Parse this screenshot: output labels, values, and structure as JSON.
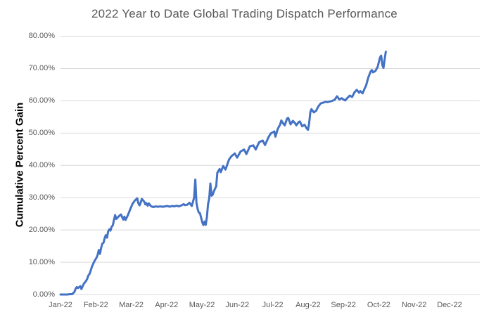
{
  "chart_data": {
    "type": "line",
    "title": "2022 Year to Date Global Trading Dispatch Performance",
    "xlabel": "",
    "ylabel": "Cumulative Percent Gain",
    "x_tick_labels": [
      "Jan-22",
      "Feb-22",
      "Mar-22",
      "Apr-22",
      "May-22",
      "Jun-22",
      "Jul-22",
      "Aug-22",
      "Sep-22",
      "Oct-22",
      "Nov-22",
      "Dec-22"
    ],
    "y_tick_labels": [
      "0.00%",
      "10.00%",
      "20.00%",
      "30.00%",
      "40.00%",
      "50.00%",
      "60.00%",
      "70.00%",
      "80.00%"
    ],
    "ylim": [
      0,
      80
    ],
    "grid": true,
    "legend": false,
    "line_color": "#4472C4",
    "grid_color": "#D9D9D9",
    "title_color": "#595959",
    "tick_color": "#595959",
    "series": [
      {
        "name": "Cumulative Percent Gain",
        "points": [
          [
            "01-01",
            0.0
          ],
          [
            "01-03",
            0.0
          ],
          [
            "01-05",
            0.0
          ],
          [
            "01-07",
            0.0
          ],
          [
            "01-09",
            0.1
          ],
          [
            "01-11",
            0.1
          ],
          [
            "01-13",
            0.8
          ],
          [
            "01-14",
            1.8
          ],
          [
            "01-15",
            2.3
          ],
          [
            "01-16",
            2.0
          ],
          [
            "01-18",
            2.6
          ],
          [
            "01-19",
            1.7
          ],
          [
            "01-21",
            3.3
          ],
          [
            "01-23",
            4.2
          ],
          [
            "01-24",
            4.9
          ],
          [
            "01-25",
            5.9
          ],
          [
            "01-26",
            6.4
          ],
          [
            "01-27",
            7.4
          ],
          [
            "01-28",
            8.6
          ],
          [
            "01-30",
            10.2
          ],
          [
            "01-31",
            10.8
          ],
          [
            "02-01",
            11.4
          ],
          [
            "02-02",
            12.3
          ],
          [
            "02-03",
            13.8
          ],
          [
            "02-04",
            12.6
          ],
          [
            "02-05",
            14.5
          ],
          [
            "02-06",
            15.8
          ],
          [
            "02-07",
            16.0
          ],
          [
            "02-08",
            17.5
          ],
          [
            "02-09",
            18.4
          ],
          [
            "02-10",
            17.6
          ],
          [
            "02-11",
            19.5
          ],
          [
            "02-12",
            20.2
          ],
          [
            "02-13",
            19.8
          ],
          [
            "02-14",
            21.0
          ],
          [
            "02-15",
            21.4
          ],
          [
            "02-16",
            23.1
          ],
          [
            "02-17",
            24.6
          ],
          [
            "02-18",
            23.4
          ],
          [
            "02-19",
            23.8
          ],
          [
            "02-21",
            24.5
          ],
          [
            "02-22",
            24.8
          ],
          [
            "02-24",
            23.2
          ],
          [
            "02-25",
            24.1
          ],
          [
            "02-26",
            23.1
          ],
          [
            "02-28",
            24.6
          ],
          [
            "03-02",
            26.4
          ],
          [
            "03-04",
            28.1
          ],
          [
            "03-06",
            29.1
          ],
          [
            "03-08",
            29.8
          ],
          [
            "03-09",
            28.3
          ],
          [
            "03-10",
            27.6
          ],
          [
            "03-11",
            28.4
          ],
          [
            "03-12",
            29.6
          ],
          [
            "03-14",
            28.8
          ],
          [
            "03-15",
            27.9
          ],
          [
            "03-16",
            28.3
          ],
          [
            "03-17",
            27.5
          ],
          [
            "03-18",
            28.2
          ],
          [
            "03-20",
            27.3
          ],
          [
            "03-22",
            27.1
          ],
          [
            "03-24",
            27.3
          ],
          [
            "03-26",
            27.2
          ],
          [
            "03-28",
            27.3
          ],
          [
            "03-30",
            27.2
          ],
          [
            "04-01",
            27.3
          ],
          [
            "04-03",
            27.4
          ],
          [
            "04-05",
            27.2
          ],
          [
            "04-07",
            27.4
          ],
          [
            "04-09",
            27.3
          ],
          [
            "04-11",
            27.5
          ],
          [
            "04-13",
            27.3
          ],
          [
            "04-15",
            27.6
          ],
          [
            "04-17",
            28.0
          ],
          [
            "04-18",
            27.7
          ],
          [
            "04-20",
            27.8
          ],
          [
            "04-22",
            28.4
          ],
          [
            "04-24",
            27.4
          ],
          [
            "04-26",
            30.0
          ],
          [
            "04-27",
            35.6
          ],
          [
            "04-28",
            28.5
          ],
          [
            "04-29",
            26.5
          ],
          [
            "04-30",
            25.4
          ],
          [
            "05-01",
            25.2
          ],
          [
            "05-03",
            22.4
          ],
          [
            "05-04",
            21.5
          ],
          [
            "05-05",
            22.6
          ],
          [
            "05-06",
            21.6
          ],
          [
            "05-07",
            24.0
          ],
          [
            "05-08",
            28.0
          ],
          [
            "05-09",
            29.8
          ],
          [
            "05-10",
            34.4
          ],
          [
            "05-11",
            30.6
          ],
          [
            "05-12",
            30.9
          ],
          [
            "05-13",
            32.0
          ],
          [
            "05-15",
            33.5
          ],
          [
            "05-16",
            37.7
          ],
          [
            "05-18",
            38.9
          ],
          [
            "05-19",
            37.9
          ],
          [
            "05-21",
            39.8
          ],
          [
            "05-23",
            38.7
          ],
          [
            "05-26",
            41.8
          ],
          [
            "05-28",
            42.8
          ],
          [
            "05-31",
            43.7
          ],
          [
            "06-02",
            42.4
          ],
          [
            "06-05",
            44.3
          ],
          [
            "06-08",
            44.9
          ],
          [
            "06-10",
            43.5
          ],
          [
            "06-13",
            45.9
          ],
          [
            "06-16",
            46.2
          ],
          [
            "06-18",
            44.9
          ],
          [
            "06-21",
            47.2
          ],
          [
            "06-24",
            47.7
          ],
          [
            "06-26",
            46.3
          ],
          [
            "06-29",
            48.7
          ],
          [
            "07-01",
            49.9
          ],
          [
            "07-04",
            50.5
          ],
          [
            "07-05",
            48.9
          ],
          [
            "07-07",
            51.3
          ],
          [
            "07-09",
            52.6
          ],
          [
            "07-10",
            53.9
          ],
          [
            "07-12",
            52.8
          ],
          [
            "07-13",
            52.4
          ],
          [
            "07-15",
            54.5
          ],
          [
            "07-16",
            54.7
          ],
          [
            "07-18",
            52.7
          ],
          [
            "07-20",
            53.8
          ],
          [
            "07-22",
            53.0
          ],
          [
            "07-23",
            52.4
          ],
          [
            "07-25",
            53.4
          ],
          [
            "07-26",
            53.6
          ],
          [
            "07-28",
            52.1
          ],
          [
            "07-30",
            52.6
          ],
          [
            "08-01",
            51.4
          ],
          [
            "08-02",
            51.0
          ],
          [
            "08-03",
            53.0
          ],
          [
            "08-04",
            56.5
          ],
          [
            "08-05",
            57.4
          ],
          [
            "08-07",
            56.4
          ],
          [
            "08-09",
            56.9
          ],
          [
            "08-11",
            58.3
          ],
          [
            "08-13",
            59.2
          ],
          [
            "08-15",
            59.4
          ],
          [
            "08-17",
            59.7
          ],
          [
            "08-19",
            59.6
          ],
          [
            "08-21",
            59.8
          ],
          [
            "08-23",
            60.0
          ],
          [
            "08-25",
            60.3
          ],
          [
            "08-27",
            61.4
          ],
          [
            "08-29",
            60.4
          ],
          [
            "08-31",
            60.8
          ],
          [
            "09-02",
            60.3
          ],
          [
            "09-03",
            60.1
          ],
          [
            "09-05",
            60.9
          ],
          [
            "09-07",
            61.6
          ],
          [
            "09-09",
            61.2
          ],
          [
            "09-11",
            62.6
          ],
          [
            "09-13",
            63.4
          ],
          [
            "09-15",
            62.5
          ],
          [
            "09-16",
            63.0
          ],
          [
            "09-18",
            62.3
          ],
          [
            "09-20",
            64.0
          ],
          [
            "09-21",
            64.7
          ],
          [
            "09-23",
            67.3
          ],
          [
            "09-25",
            69.1
          ],
          [
            "09-26",
            69.5
          ],
          [
            "09-27",
            68.8
          ],
          [
            "09-29",
            69.2
          ],
          [
            "10-01",
            70.5
          ],
          [
            "10-03",
            73.4
          ],
          [
            "10-04",
            74.0
          ],
          [
            "10-05",
            71.0
          ],
          [
            "10-06",
            70.2
          ],
          [
            "10-07",
            73.0
          ],
          [
            "10-08",
            75.2
          ]
        ]
      }
    ]
  }
}
